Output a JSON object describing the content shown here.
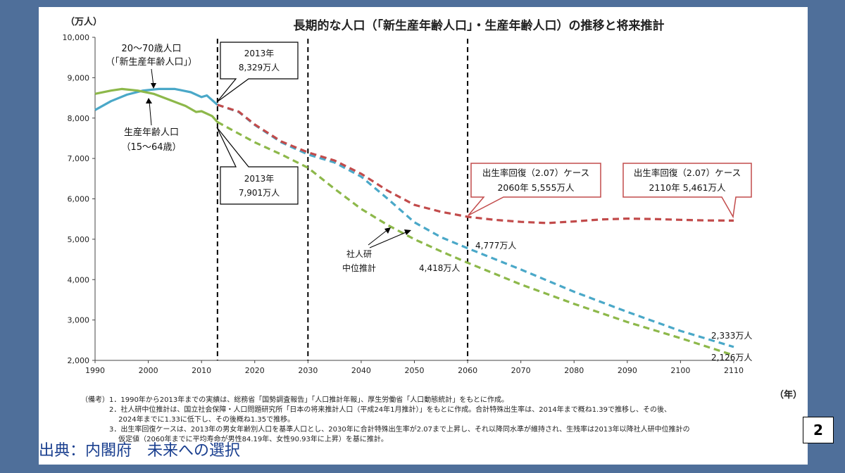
{
  "title": "長期的な人口（「新生産年齢人口」・生産年齢人口）の推移と将来推計",
  "y_unit": "（万人）",
  "x_unit": "（年）",
  "annotations": {
    "new_label_1": "20～70歳人口",
    "new_label_2": "（「新生産年齢人口」）",
    "prod_label_1": "生産年齢人口",
    "prod_label_2": "（15～64歳）",
    "box2013_new_1": "2013年",
    "box2013_new_2": "8,329万人",
    "box2013_prod_1": "2013年",
    "box2013_prod_2": "7,901万人",
    "ipss_1": "社人研",
    "ipss_2": "中位推計",
    "recov2060_1": "出生率回復（2.07）ケース",
    "recov2060_2": "2060年 5,555万人",
    "recov2110_1": "出生率回復（2.07）ケース",
    "recov2110_2": "2110年 5,461万人",
    "v2060_blue": "4,777万人",
    "v2060_green": "4,418万人",
    "v2110_blue": "2,333万人",
    "v2110_green": "2,126万人"
  },
  "notes": "（備考）1．1990年から2013年までの実績は、総務省「国勢調査報告」「人口推計年報」、厚生労働省「人口動態統計」をもとに作成。\n　　　　2．社人研中位推計は、国立社会保障・人口問題研究所「日本の将来推計人口（平成24年1月推計）」をもとに作成。合計特殊出生率は、2014年まで概ね1.39で推移し、その後、\n　　　　　 2024年までに1.33に低下し、その後概ね1.35で推移。\n　　　　3．出生率回復ケースは、2013年の男女年齢別人口を基準人口とし、2030年に合計特殊出生率が2.07まで上昇し、それ以降同水準が維持され、生残率は2013年以降社人研中位推計の\n　　　　　 仮定値（2060年までに平均寿命が男性84.19年、女性90.93年に上昇）を基に推計。",
  "page_number": "2",
  "source": "出典：内閣府　未来への選択",
  "chart_data": {
    "type": "line",
    "xlim": [
      1990,
      2110
    ],
    "ylim": [
      2000,
      10000
    ],
    "x_ticks": [
      1990,
      2000,
      2010,
      2020,
      2030,
      2040,
      2050,
      2060,
      2070,
      2080,
      2090,
      2100,
      2110
    ],
    "y_ticks": [
      2000,
      3000,
      4000,
      5000,
      6000,
      7000,
      8000,
      9000,
      10000
    ],
    "y_tick_labels": [
      "2,000",
      "3,000",
      "4,000",
      "5,000",
      "6,000",
      "7,000",
      "8,000",
      "9,000",
      "10,000"
    ],
    "vertical_lines": [
      2013,
      2030,
      2060
    ],
    "series": [
      {
        "name": "20～70歳人口（「新生産年齢人口」）",
        "color": "#4aa8c8",
        "style": "solid",
        "points": [
          [
            1990,
            8200
          ],
          [
            1993,
            8420
          ],
          [
            1996,
            8580
          ],
          [
            1999,
            8680
          ],
          [
            2002,
            8720
          ],
          [
            2005,
            8720
          ],
          [
            2008,
            8640
          ],
          [
            2010,
            8520
          ],
          [
            2011,
            8560
          ],
          [
            2013,
            8329
          ]
        ]
      },
      {
        "name": "生産年齢人口（15～64歳）",
        "color": "#8db84a",
        "style": "solid",
        "points": [
          [
            1990,
            8600
          ],
          [
            1993,
            8680
          ],
          [
            1995,
            8720
          ],
          [
            1998,
            8680
          ],
          [
            2001,
            8600
          ],
          [
            2004,
            8450
          ],
          [
            2007,
            8300
          ],
          [
            2009,
            8150
          ],
          [
            2010,
            8170
          ],
          [
            2012,
            8050
          ],
          [
            2013,
            7901
          ]
        ]
      },
      {
        "name": "新生産年齢人口 社人研中位推計",
        "color": "#4aa8c8",
        "style": "dashed",
        "points": [
          [
            2013,
            8329
          ],
          [
            2017,
            8150
          ],
          [
            2020,
            7830
          ],
          [
            2025,
            7400
          ],
          [
            2030,
            7100
          ],
          [
            2035,
            6900
          ],
          [
            2040,
            6550
          ],
          [
            2045,
            6000
          ],
          [
            2050,
            5420
          ],
          [
            2055,
            5050
          ],
          [
            2060,
            4777
          ],
          [
            2070,
            4250
          ],
          [
            2080,
            3700
          ],
          [
            2090,
            3200
          ],
          [
            2100,
            2730
          ],
          [
            2110,
            2333
          ]
        ]
      },
      {
        "name": "新生産年齢人口 出生率回復ケース",
        "color": "#c24b4b",
        "style": "dashed",
        "points": [
          [
            2013,
            8329
          ],
          [
            2017,
            8160
          ],
          [
            2020,
            7840
          ],
          [
            2025,
            7420
          ],
          [
            2030,
            7150
          ],
          [
            2035,
            6950
          ],
          [
            2040,
            6620
          ],
          [
            2045,
            6200
          ],
          [
            2050,
            5850
          ],
          [
            2055,
            5680
          ],
          [
            2060,
            5555
          ],
          [
            2065,
            5480
          ],
          [
            2070,
            5430
          ],
          [
            2075,
            5400
          ],
          [
            2080,
            5440
          ],
          [
            2085,
            5490
          ],
          [
            2090,
            5510
          ],
          [
            2095,
            5500
          ],
          [
            2100,
            5480
          ],
          [
            2105,
            5465
          ],
          [
            2110,
            5461
          ]
        ]
      },
      {
        "name": "生産年齢人口 社人研中位推計",
        "color": "#8db84a",
        "style": "dashed",
        "points": [
          [
            2013,
            7901
          ],
          [
            2020,
            7400
          ],
          [
            2025,
            7100
          ],
          [
            2030,
            6770
          ],
          [
            2035,
            6250
          ],
          [
            2040,
            5750
          ],
          [
            2045,
            5350
          ],
          [
            2050,
            5000
          ],
          [
            2055,
            4700
          ],
          [
            2060,
            4418
          ],
          [
            2070,
            3880
          ],
          [
            2080,
            3400
          ],
          [
            2090,
            2950
          ],
          [
            2100,
            2550
          ],
          [
            2110,
            2126
          ]
        ]
      }
    ]
  }
}
